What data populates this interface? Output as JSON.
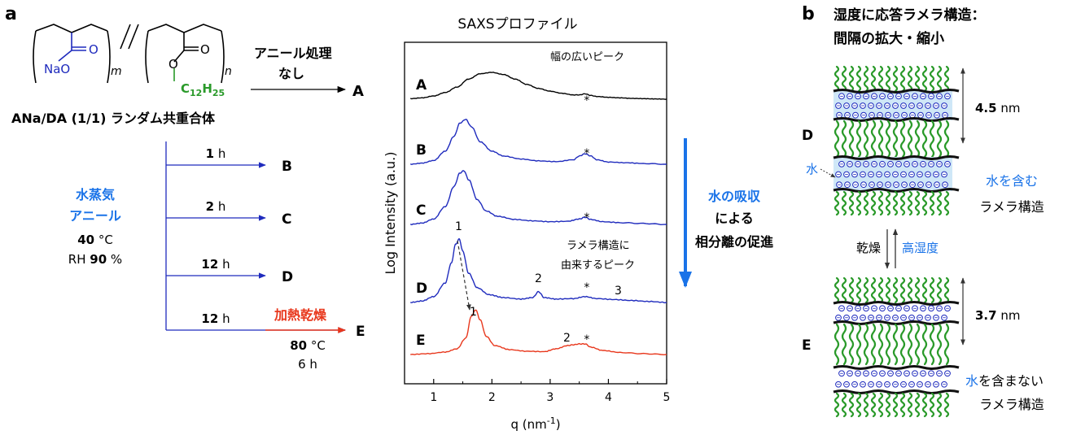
{
  "panel_labels": {
    "a": "a",
    "b": "b"
  },
  "polymer": {
    "left_unit": "NaO",
    "left_sub": "m",
    "right_unit": "C12H25",
    "chain_c": "C",
    "chain_h": "H",
    "chain_n12": "12",
    "chain_n25": "25",
    "right_sub": "n",
    "o_label": "O",
    "name": "ANa/DA (1/1) ランダム共重合体"
  },
  "no_anneal": {
    "line1": "アニール処理",
    "line2": "なし",
    "target": "A"
  },
  "steam": {
    "line1": "水蒸気",
    "line2": "アニール",
    "temp_value": "40",
    "temp_unit": " °C",
    "rh_prefix": "RH ",
    "rh_value": "90",
    "rh_unit": " %"
  },
  "branches": [
    {
      "time_value": "1",
      "time_unit": " h",
      "target": "B"
    },
    {
      "time_value": "2",
      "time_unit": " h",
      "target": "C"
    },
    {
      "time_value": "12",
      "time_unit": " h",
      "target": "D"
    },
    {
      "time_value": "12",
      "time_unit": " h",
      "target": "E"
    }
  ],
  "heat_dry": {
    "label": "加熱乾燥",
    "temp_value": "80",
    "temp_unit": " °C",
    "time": "6 h"
  },
  "chart_data": {
    "type": "line",
    "title": "SAXSプロファイル",
    "xlabel": "q (nm",
    "xlabel_sup": "-1",
    "xlabel_end": ")",
    "ylabel": "Log Intensity (a.u.)",
    "xlim": [
      0.5,
      5
    ],
    "x_ticks": [
      "1",
      "2",
      "3",
      "4",
      "5"
    ],
    "series": [
      {
        "name": "A",
        "color": "#000000",
        "offset": 0,
        "x": [
          0.6,
          0.8,
          1.0,
          1.2,
          1.4,
          1.6,
          1.8,
          2.0,
          2.2,
          2.4,
          2.6,
          2.8,
          3.0,
          3.2,
          3.4,
          3.5,
          3.6,
          3.7,
          3.8,
          4.0,
          4.2,
          4.4,
          4.6,
          4.8,
          5.0
        ],
        "y": [
          0.02,
          0.05,
          0.12,
          0.25,
          0.45,
          0.75,
          0.95,
          1.0,
          0.92,
          0.75,
          0.55,
          0.4,
          0.3,
          0.22,
          0.16,
          0.16,
          0.2,
          0.14,
          0.1,
          0.07,
          0.05,
          0.03,
          0.02,
          0.01,
          0.0
        ]
      },
      {
        "name": "B",
        "color": "#1f2bbd",
        "offset": 0,
        "x": [
          0.6,
          0.8,
          1.0,
          1.2,
          1.35,
          1.45,
          1.55,
          1.65,
          1.8,
          2.0,
          2.2,
          2.5,
          2.8,
          3.1,
          3.4,
          3.5,
          3.6,
          3.7,
          3.8,
          4.0,
          4.3,
          4.6,
          5.0
        ],
        "y": [
          0.0,
          0.03,
          0.1,
          0.35,
          0.75,
          1.1,
          1.2,
          1.0,
          0.6,
          0.35,
          0.22,
          0.14,
          0.09,
          0.07,
          0.12,
          0.22,
          0.28,
          0.22,
          0.12,
          0.06,
          0.04,
          0.02,
          0.0
        ]
      },
      {
        "name": "C",
        "color": "#1f2bbd",
        "offset": 0,
        "x": [
          0.6,
          0.8,
          1.0,
          1.2,
          1.35,
          1.45,
          1.52,
          1.6,
          1.75,
          1.9,
          2.1,
          2.4,
          2.7,
          3.0,
          3.3,
          3.5,
          3.6,
          3.7,
          3.9,
          4.2,
          4.6,
          5.0
        ],
        "y": [
          0.0,
          0.03,
          0.12,
          0.4,
          0.85,
          1.15,
          1.2,
          1.0,
          0.55,
          0.3,
          0.18,
          0.11,
          0.08,
          0.06,
          0.07,
          0.12,
          0.16,
          0.11,
          0.06,
          0.04,
          0.02,
          0.0
        ]
      },
      {
        "name": "D",
        "color": "#1f2bbd",
        "offset": 0,
        "x": [
          0.6,
          0.8,
          1.0,
          1.2,
          1.3,
          1.38,
          1.44,
          1.5,
          1.6,
          1.75,
          1.95,
          2.2,
          2.5,
          2.7,
          2.8,
          2.9,
          3.1,
          3.4,
          3.6,
          3.8,
          4.1,
          4.4,
          4.7,
          5.0
        ],
        "y": [
          0.0,
          0.03,
          0.12,
          0.4,
          0.8,
          1.2,
          1.3,
          1.05,
          0.6,
          0.3,
          0.16,
          0.1,
          0.07,
          0.1,
          0.22,
          0.1,
          0.07,
          0.08,
          0.12,
          0.08,
          0.06,
          0.04,
          0.02,
          0.0
        ]
      },
      {
        "name": "E",
        "color": "#e8371c",
        "offset": 0,
        "x": [
          0.6,
          0.9,
          1.2,
          1.4,
          1.55,
          1.65,
          1.72,
          1.8,
          1.9,
          2.05,
          2.3,
          2.6,
          2.9,
          3.1,
          3.3,
          3.4,
          3.5,
          3.6,
          3.7,
          3.9,
          4.2,
          4.6,
          5.0
        ],
        "y": [
          0.0,
          0.02,
          0.06,
          0.14,
          0.4,
          0.95,
          1.1,
          0.85,
          0.45,
          0.22,
          0.12,
          0.08,
          0.07,
          0.14,
          0.22,
          0.24,
          0.26,
          0.26,
          0.18,
          0.1,
          0.05,
          0.02,
          0.0
        ]
      }
    ],
    "annotations": {
      "broad_peak": "幅の広いピーク",
      "lamella_peak_l1": "ラメラ構造に",
      "lamella_peak_l2": "由来するピーク",
      "star": "*",
      "d_peak1": "1",
      "d_peak2": "2",
      "d_peak3": "3",
      "e_peak1": "1",
      "e_peak2": "2"
    }
  },
  "water_arrow": {
    "line1": "水の吸収",
    "line2": "による",
    "line3": "相分離の促進"
  },
  "panel_b": {
    "title_line1": "湿度に応答ラメラ構造：",
    "title_line2": "間隔の拡大・縮小",
    "D_label": "D",
    "E_label": "E",
    "d_spacing_value": "4.5",
    "d_spacing_unit": " nm",
    "e_spacing_value": "3.7",
    "e_spacing_unit": " nm",
    "water_label": "水",
    "d_desc_blue": "水を含む",
    "d_desc_black": "ラメラ構造",
    "dry": "乾燥",
    "humid": "高湿度",
    "e_desc_blue": "水",
    "e_desc_rest": "を含まない",
    "e_desc_line2": "ラメラ構造"
  },
  "colors": {
    "blue": "#1f2bbd",
    "bright_blue": "#1a73e8",
    "red": "#e8371c",
    "green": "#2a9a2a",
    "light_blue": "#cfe7f7"
  }
}
